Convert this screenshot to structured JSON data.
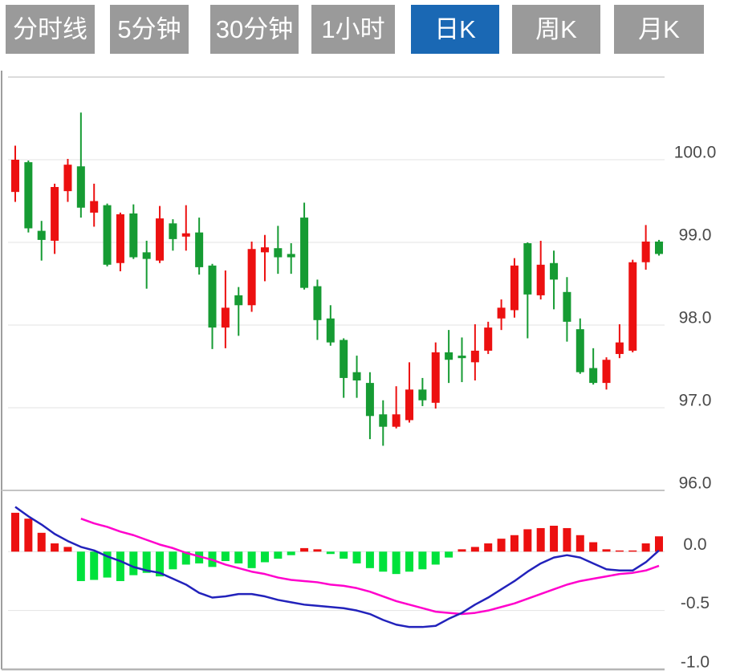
{
  "toolbar": {
    "buttons": [
      {
        "id": "minute-line",
        "label": "分时线",
        "active": false
      },
      {
        "id": "5min",
        "label": "5分钟",
        "active": false
      },
      {
        "id": "30min",
        "label": "30分钟",
        "active": false
      },
      {
        "id": "1hour",
        "label": "1小时",
        "active": false
      },
      {
        "id": "daily-k",
        "label": "日K",
        "active": true
      },
      {
        "id": "weekly-k",
        "label": "周K",
        "active": false
      },
      {
        "id": "monthly-k",
        "label": "月K",
        "active": false
      }
    ]
  },
  "colors": {
    "up": "#ec1010",
    "down": "#169b33",
    "hist_pos": "#ec1010",
    "hist_neg": "#00e23c",
    "dif_line": "#2222bb",
    "dea_line": "#ff00cc",
    "button_bg": "#9a9a9a",
    "button_active_bg": "#1a68b4",
    "button_text": "#ffffff",
    "axis_text": "#4a4a4a",
    "grid": "#e3e3e3",
    "pane_border": "#cfcfcf",
    "separator": "#c4c4c4",
    "bottom_border": "#b5b5b5",
    "left_border": "#9e9e9e"
  },
  "chart_data": {
    "type": "candlestick",
    "title": "",
    "legend_position": "none",
    "grid": true,
    "price_pane": {
      "ylim": [
        96,
        101
      ],
      "ticks": [
        {
          "price": 101,
          "label": ""
        },
        {
          "price": 100,
          "label": "100.0"
        },
        {
          "price": 99,
          "label": "99.0"
        },
        {
          "price": 98,
          "label": "98.0"
        },
        {
          "price": 97,
          "label": "97.0"
        },
        {
          "price": 96,
          "label": "96.0"
        }
      ],
      "candles": [
        {
          "o": 99.61,
          "h": 100.17,
          "l": 99.49,
          "c": 100.0
        },
        {
          "o": 99.97,
          "h": 99.99,
          "l": 99.12,
          "c": 99.17
        },
        {
          "o": 99.14,
          "h": 99.26,
          "l": 98.78,
          "c": 99.03
        },
        {
          "o": 99.02,
          "h": 99.71,
          "l": 98.86,
          "c": 99.67
        },
        {
          "o": 99.62,
          "h": 100.01,
          "l": 99.49,
          "c": 99.94
        },
        {
          "o": 99.92,
          "h": 100.57,
          "l": 99.3,
          "c": 99.42
        },
        {
          "o": 99.36,
          "h": 99.71,
          "l": 99.19,
          "c": 99.5
        },
        {
          "o": 99.45,
          "h": 99.47,
          "l": 98.71,
          "c": 98.73
        },
        {
          "o": 98.75,
          "h": 99.36,
          "l": 98.65,
          "c": 99.34
        },
        {
          "o": 99.35,
          "h": 99.46,
          "l": 98.8,
          "c": 98.82
        },
        {
          "o": 98.88,
          "h": 99.02,
          "l": 98.44,
          "c": 98.8
        },
        {
          "o": 98.78,
          "h": 99.44,
          "l": 98.75,
          "c": 99.29
        },
        {
          "o": 99.23,
          "h": 99.28,
          "l": 98.9,
          "c": 99.04
        },
        {
          "o": 99.07,
          "h": 99.45,
          "l": 98.9,
          "c": 99.11
        },
        {
          "o": 99.12,
          "h": 99.3,
          "l": 98.61,
          "c": 98.7
        },
        {
          "o": 98.72,
          "h": 98.74,
          "l": 97.71,
          "c": 97.97
        },
        {
          "o": 97.97,
          "h": 98.66,
          "l": 97.72,
          "c": 98.21
        },
        {
          "o": 98.36,
          "h": 98.46,
          "l": 97.87,
          "c": 98.24
        },
        {
          "o": 98.24,
          "h": 99.01,
          "l": 98.16,
          "c": 98.92
        },
        {
          "o": 98.88,
          "h": 99.09,
          "l": 98.53,
          "c": 98.94
        },
        {
          "o": 98.93,
          "h": 99.2,
          "l": 98.62,
          "c": 98.82
        },
        {
          "o": 98.86,
          "h": 98.99,
          "l": 98.62,
          "c": 98.82
        },
        {
          "o": 99.3,
          "h": 99.48,
          "l": 98.43,
          "c": 98.45
        },
        {
          "o": 98.47,
          "h": 98.55,
          "l": 97.82,
          "c": 98.06
        },
        {
          "o": 98.08,
          "h": 98.24,
          "l": 97.75,
          "c": 97.79
        },
        {
          "o": 97.82,
          "h": 97.84,
          "l": 97.12,
          "c": 97.36
        },
        {
          "o": 97.43,
          "h": 97.63,
          "l": 97.12,
          "c": 97.33
        },
        {
          "o": 97.3,
          "h": 97.43,
          "l": 96.62,
          "c": 96.9
        },
        {
          "o": 96.92,
          "h": 97.09,
          "l": 96.54,
          "c": 96.77
        },
        {
          "o": 96.77,
          "h": 97.26,
          "l": 96.75,
          "c": 96.92
        },
        {
          "o": 96.85,
          "h": 97.55,
          "l": 96.82,
          "c": 97.22
        },
        {
          "o": 97.22,
          "h": 97.36,
          "l": 97.02,
          "c": 97.09
        },
        {
          "o": 97.06,
          "h": 97.79,
          "l": 96.99,
          "c": 97.67
        },
        {
          "o": 97.67,
          "h": 97.94,
          "l": 97.3,
          "c": 97.58
        },
        {
          "o": 97.63,
          "h": 97.85,
          "l": 97.31,
          "c": 97.6
        },
        {
          "o": 97.55,
          "h": 98.01,
          "l": 97.33,
          "c": 97.69
        },
        {
          "o": 97.69,
          "h": 98.04,
          "l": 97.65,
          "c": 97.97
        },
        {
          "o": 98.08,
          "h": 98.31,
          "l": 97.94,
          "c": 98.21
        },
        {
          "o": 98.18,
          "h": 98.81,
          "l": 98.09,
          "c": 98.72
        },
        {
          "o": 98.99,
          "h": 99.0,
          "l": 97.84,
          "c": 98.37
        },
        {
          "o": 98.36,
          "h": 99.02,
          "l": 98.31,
          "c": 98.73
        },
        {
          "o": 98.75,
          "h": 98.9,
          "l": 98.19,
          "c": 98.55
        },
        {
          "o": 98.4,
          "h": 98.58,
          "l": 97.8,
          "c": 98.04
        },
        {
          "o": 97.95,
          "h": 98.08,
          "l": 97.41,
          "c": 97.43
        },
        {
          "o": 97.48,
          "h": 97.72,
          "l": 97.28,
          "c": 97.3
        },
        {
          "o": 97.3,
          "h": 97.61,
          "l": 97.22,
          "c": 97.58
        },
        {
          "o": 97.65,
          "h": 98.01,
          "l": 97.6,
          "c": 97.79
        },
        {
          "o": 97.69,
          "h": 98.79,
          "l": 97.67,
          "c": 98.76
        },
        {
          "o": 98.76,
          "h": 99.21,
          "l": 98.67,
          "c": 99.01
        },
        {
          "o": 99.01,
          "h": 99.03,
          "l": 98.84,
          "c": 98.86
        }
      ]
    },
    "macd_pane": {
      "ylim": [
        -1.0,
        0.52
      ],
      "ticks": [
        {
          "value": 0,
          "label": "0.0"
        },
        {
          "value": -0.5,
          "label": "-0.5"
        },
        {
          "value": -1.0,
          "label": "-1.0"
        }
      ],
      "hist": [
        0.33,
        0.28,
        0.16,
        0.07,
        0.04,
        -0.25,
        -0.24,
        -0.22,
        -0.25,
        -0.2,
        -0.18,
        -0.21,
        -0.15,
        -0.11,
        -0.1,
        -0.13,
        -0.08,
        -0.1,
        -0.14,
        -0.09,
        -0.06,
        -0.03,
        0.03,
        0.02,
        -0.02,
        -0.06,
        -0.1,
        -0.14,
        -0.17,
        -0.19,
        -0.17,
        -0.15,
        -0.11,
        -0.05,
        0.02,
        0.04,
        0.07,
        0.11,
        0.14,
        0.19,
        0.2,
        0.22,
        0.2,
        0.14,
        0.08,
        0.02,
        0.01,
        0.01,
        0.07,
        0.13
      ],
      "dif": [
        0.38,
        0.3,
        0.23,
        0.15,
        0.09,
        0.04,
        0.01,
        -0.04,
        -0.08,
        -0.13,
        -0.16,
        -0.18,
        -0.23,
        -0.28,
        -0.35,
        -0.39,
        -0.38,
        -0.36,
        -0.36,
        -0.38,
        -0.41,
        -0.43,
        -0.45,
        -0.46,
        -0.47,
        -0.48,
        -0.5,
        -0.53,
        -0.58,
        -0.62,
        -0.64,
        -0.64,
        -0.63,
        -0.57,
        -0.52,
        -0.45,
        -0.39,
        -0.32,
        -0.25,
        -0.17,
        -0.1,
        -0.05,
        -0.03,
        -0.05,
        -0.1,
        -0.15,
        -0.16,
        -0.16,
        -0.09,
        0.01
      ],
      "dea": {
        "start_index": 5,
        "values": [
          0.28,
          0.24,
          0.21,
          0.17,
          0.14,
          0.1,
          0.06,
          0.03,
          -0.01,
          -0.04,
          -0.07,
          -0.11,
          -0.14,
          -0.17,
          -0.19,
          -0.22,
          -0.24,
          -0.25,
          -0.26,
          -0.28,
          -0.29,
          -0.31,
          -0.34,
          -0.38,
          -0.42,
          -0.45,
          -0.48,
          -0.51,
          -0.52,
          -0.53,
          -0.52,
          -0.5,
          -0.47,
          -0.44,
          -0.4,
          -0.36,
          -0.32,
          -0.28,
          -0.25,
          -0.23,
          -0.21,
          -0.19,
          -0.18,
          -0.16,
          -0.12
        ]
      }
    }
  }
}
